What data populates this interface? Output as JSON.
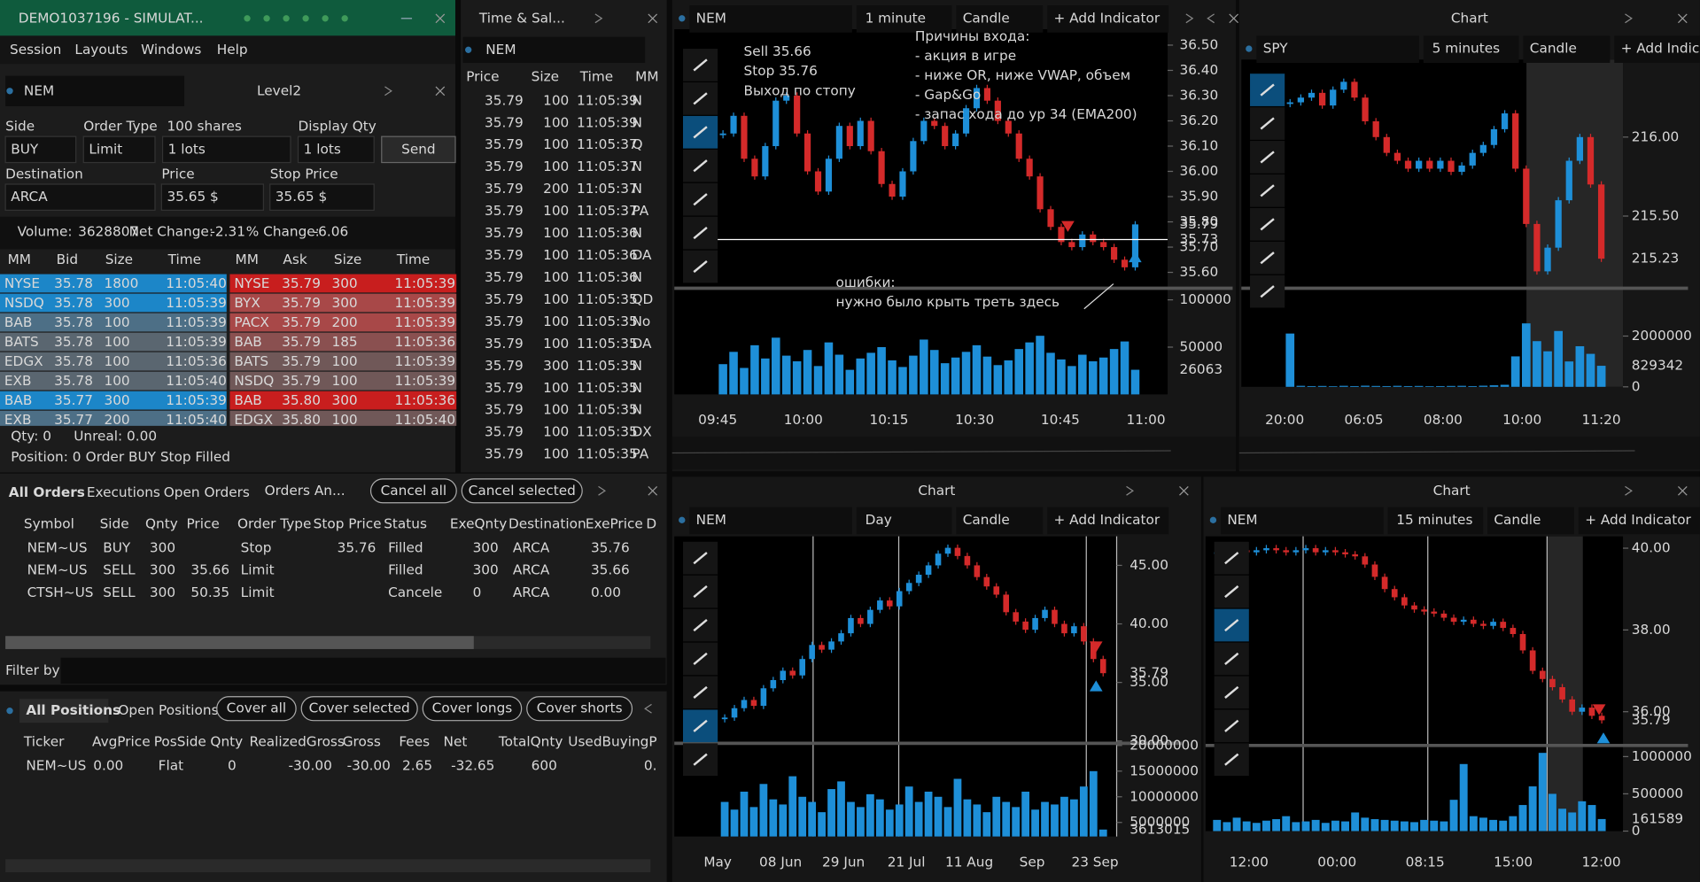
{
  "window": {
    "title": "DEMO1037196 - SIMULAT...",
    "menu": [
      "Session",
      "Layouts",
      "Windows",
      "Help"
    ]
  },
  "level2": {
    "symbol": "NEM",
    "title": "Level2",
    "labels": {
      "side": "Side",
      "order_type": "Order Type",
      "shares": "100 shares",
      "display_qty": "Display Qty",
      "destination": "Destination",
      "price": "Price",
      "stop_price": "Stop Price"
    },
    "fields": {
      "side": "BUY",
      "order_type": "Limit",
      "qty": "1 lots",
      "display_qty": "1 lots",
      "destination": "ARCA",
      "price": "35.65 $",
      "stop_price": "35.65 $"
    },
    "send": "Send",
    "stats": [
      {
        "label": "Volume:",
        "value": "3628807"
      },
      {
        "label": "Net Change:",
        "value": "-2.31",
        "color": "#e04040"
      },
      {
        "label": "% Change:",
        "value": "-6.06",
        "color": "#e04040"
      }
    ],
    "book_header": [
      "MM",
      "Bid",
      "Size",
      "Time",
      "MM",
      "Ask",
      "Size",
      "Time"
    ],
    "bids": [
      {
        "mm": "NYSE",
        "price": "35.78",
        "size": "1800",
        "time": "11:05:40",
        "color": "#1c86c8"
      },
      {
        "mm": "NSDQ",
        "price": "35.78",
        "size": "300",
        "time": "11:05:39",
        "color": "#1c86c8"
      },
      {
        "mm": "BAB",
        "price": "35.78",
        "size": "100",
        "time": "11:05:39",
        "color": "#4d6f86"
      },
      {
        "mm": "BATS",
        "price": "35.78",
        "size": "100",
        "time": "11:05:39",
        "color": "#5a6670"
      },
      {
        "mm": "EDGX",
        "price": "35.78",
        "size": "100",
        "time": "11:05:36",
        "color": "#5a6670"
      },
      {
        "mm": "EXB",
        "price": "35.78",
        "size": "100",
        "time": "11:05:40",
        "color": "#5a6670"
      },
      {
        "mm": "BAB",
        "price": "35.77",
        "size": "300",
        "time": "11:05:39",
        "color": "#1c86c8"
      },
      {
        "mm": "EXB",
        "price": "35.77",
        "size": "200",
        "time": "11:05:40",
        "color": "#4d6f86"
      }
    ],
    "asks": [
      {
        "mm": "NYSE",
        "price": "35.79",
        "size": "300",
        "time": "11:05:39",
        "color": "#c81e1e"
      },
      {
        "mm": "BYX",
        "price": "35.79",
        "size": "300",
        "time": "11:05:39",
        "color": "#a84848"
      },
      {
        "mm": "PACX",
        "price": "35.79",
        "size": "200",
        "time": "11:05:39",
        "color": "#a84848"
      },
      {
        "mm": "BAB",
        "price": "35.79",
        "size": "185",
        "time": "11:05:36",
        "color": "#8a5050"
      },
      {
        "mm": "BATS",
        "price": "35.79",
        "size": "100",
        "time": "11:05:39",
        "color": "#705858"
      },
      {
        "mm": "NSDQ",
        "price": "35.79",
        "size": "100",
        "time": "11:05:39",
        "color": "#705858"
      },
      {
        "mm": "BAB",
        "price": "35.80",
        "size": "300",
        "time": "11:05:36",
        "color": "#c81e1e"
      },
      {
        "mm": "EDGX",
        "price": "35.80",
        "size": "100",
        "time": "11:05:40",
        "color": "#705858"
      }
    ],
    "status": [
      [
        "Qty: 0",
        "Unreal: 0.00"
      ],
      [
        "Position: 0",
        "Order BUY Stop Filled"
      ]
    ]
  },
  "time_sales": {
    "title": "Time & Sal...",
    "symbol": "NEM",
    "header": [
      "Price",
      "Size",
      "Time",
      "MM"
    ],
    "rows": [
      {
        "price": "35.79",
        "size": "100",
        "time": "11:05:39",
        "mm": "N",
        "color": "#e8e8e8"
      },
      {
        "price": "35.79",
        "size": "100",
        "time": "11:05:39",
        "mm": "N",
        "color": "#e03030"
      },
      {
        "price": "35.79",
        "size": "100",
        "time": "11:05:37",
        "mm": "Q",
        "color": "#e8e8e8"
      },
      {
        "price": "35.79",
        "size": "100",
        "time": "11:05:37",
        "mm": "N",
        "color": "#2b8fd6"
      },
      {
        "price": "35.79",
        "size": "200",
        "time": "11:05:37",
        "mm": "N",
        "color": "#e8e8e8"
      },
      {
        "price": "35.79",
        "size": "100",
        "time": "11:05:37",
        "mm": "PA",
        "color": "#e03030"
      },
      {
        "price": "35.79",
        "size": "100",
        "time": "11:05:36",
        "mm": "N",
        "color": "#2b8fd6"
      },
      {
        "price": "35.79",
        "size": "100",
        "time": "11:05:36",
        "mm": "DA",
        "color": "#2b8fd6"
      },
      {
        "price": "35.79",
        "size": "100",
        "time": "11:05:36",
        "mm": "N",
        "color": "#2b8fd6"
      },
      {
        "price": "35.79",
        "size": "100",
        "time": "11:05:35",
        "mm": "QD",
        "color": "#e8e8e8"
      },
      {
        "price": "35.79",
        "size": "100",
        "time": "11:05:35",
        "mm": "No",
        "color": "#e8e8e8"
      },
      {
        "price": "35.79",
        "size": "100",
        "time": "11:05:35",
        "mm": "DA",
        "color": "#2b8fd6"
      },
      {
        "price": "35.79",
        "size": "300",
        "time": "11:05:35",
        "mm": "N",
        "color": "#e03030"
      },
      {
        "price": "35.79",
        "size": "100",
        "time": "11:05:35",
        "mm": "N",
        "color": "#e03030"
      },
      {
        "price": "35.79",
        "size": "100",
        "time": "11:05:35",
        "mm": "N",
        "color": "#e03030"
      },
      {
        "price": "35.79",
        "size": "100",
        "time": "11:05:35",
        "mm": "DX",
        "color": "#e03030"
      },
      {
        "price": "35.79",
        "size": "100",
        "time": "11:05:35",
        "mm": "PA",
        "color": "#e03030"
      }
    ]
  },
  "orders": {
    "tabs": [
      "All Orders",
      "Executions",
      "Open Orders"
    ],
    "title": "Orders An...",
    "buttons": [
      "Cancel all",
      "Cancel selected"
    ],
    "header": {
      "symbol": "Symbol",
      "side": "Side",
      "qnty": "Qnty",
      "price": "Price",
      "order_type": "Order Type",
      "stop_price": "Stop Price",
      "status": "Status",
      "exe_qnty": "ExeQnty",
      "destination": "Destination",
      "exe_price": "ExePrice",
      "d": "D"
    },
    "rows": [
      {
        "symbol": "NEM~US",
        "side": "BUY",
        "side_color": "#2b8fd6",
        "qnty": "300",
        "order_type": "Stop",
        "stop_price": "35.76",
        "status": "Filled",
        "status_color": "#8cc63f",
        "exe_qnty": "300",
        "destination": "ARCA",
        "exe_price": "35.76"
      },
      {
        "symbol": "NEM~US",
        "side": "SELL",
        "side_color": "#d03030",
        "qnty": "300",
        "price": "35.66",
        "order_type": "Limit",
        "status": "Filled",
        "status_color": "#8cc63f",
        "exe_qnty": "300",
        "destination": "ARCA",
        "exe_price": "35.66"
      },
      {
        "symbol": "CTSH~US",
        "side": "SELL",
        "side_color": "#d03030",
        "qnty": "300",
        "price": "50.35",
        "order_type": "Limit",
        "status": "Cancele",
        "status_color": "#999999",
        "exe_qnty": "0",
        "destination": "ARCA",
        "exe_price": "0.00"
      }
    ],
    "filter": "Filter by"
  },
  "positions": {
    "tabs": [
      "All Positions",
      "Open Positions"
    ],
    "buttons": [
      "Cover all",
      "Cover selected",
      "Cover longs",
      "Cover shorts"
    ],
    "header": {
      "ticker": "Ticker",
      "avg": "AvgPrice",
      "side": "PosSide",
      "qnty": "Qnty",
      "realized": "RealizedGross",
      "gross": "Gross",
      "fees": "Fees",
      "net": "Net",
      "total": "TotalQnty",
      "used": "UsedBuyingPo"
    },
    "rows": [
      {
        "ticker": "NEM~US",
        "avg": "0.00",
        "side": "Flat",
        "qnty": "0",
        "realized": "-30.00",
        "gross": "-30.00",
        "fees": "2.65",
        "net": "-32.65",
        "total": "600",
        "used": "0.",
        "colors": {
          "realized": "#e03030",
          "gross": "#e03030",
          "net": "#e03030"
        }
      }
    ]
  },
  "charts": [
    {
      "type": "candlestick",
      "symbol": "NEM",
      "interval": "1 minute",
      "style": "Candle",
      "indicator": "+ Add Indicator",
      "ylim": [
        35.55,
        36.55
      ],
      "yticks": [
        {
          "value": 36.5,
          "label": "36.50"
        },
        {
          "value": 36.4,
          "label": "36.40"
        },
        {
          "value": 36.3,
          "label": "36.30"
        },
        {
          "value": 36.2,
          "label": "36.20"
        },
        {
          "value": 36.1,
          "label": "36.10"
        },
        {
          "value": 36.0,
          "label": "36.00"
        },
        {
          "value": 35.9,
          "label": "35.90"
        },
        {
          "value": 35.8,
          "label": "35.80"
        },
        {
          "value": 35.7,
          "label": "35.70"
        },
        {
          "value": 35.6,
          "label": "35.60"
        }
      ],
      "price_markers": [
        {
          "value": 35.79,
          "color": "#2b8fd6"
        },
        {
          "value": 35.73,
          "color": "#ffffff",
          "line": true
        }
      ],
      "vol_ylim": [
        0,
        110000
      ],
      "vol_ticks": [
        50000,
        100000
      ],
      "vol_marker": {
        "value": 26063,
        "color": "#2b8fd6"
      },
      "xticks": [
        "09:45",
        "10:00",
        "10:15",
        "10:30",
        "10:45",
        "11:00"
      ],
      "closes": [
        36.15,
        36.22,
        36.05,
        35.98,
        36.1,
        36.28,
        36.3,
        36.15,
        36.0,
        35.92,
        36.05,
        36.18,
        36.1,
        36.2,
        36.08,
        35.95,
        35.9,
        36.0,
        36.12,
        36.2,
        36.18,
        36.1,
        36.15,
        36.25,
        36.33,
        36.28,
        36.2,
        36.15,
        36.05,
        35.98,
        35.85,
        35.78,
        35.72,
        35.7,
        35.75,
        35.72,
        35.7,
        35.65,
        35.62,
        35.79
      ],
      "volumes": [
        32000,
        45000,
        28000,
        52000,
        38000,
        60000,
        41000,
        35000,
        47000,
        30000,
        55000,
        42000,
        26000,
        38000,
        44000,
        50000,
        36000,
        29000,
        41000,
        58000,
        47000,
        33000,
        39000,
        45000,
        52000,
        40000,
        31000,
        36000,
        48000,
        55000,
        62000,
        44000,
        37000,
        30000,
        42000,
        35000,
        39000,
        48000,
        56000,
        26063
      ],
      "annotations": [
        "Sell 35.66",
        "Stop 35.76",
        "Выход по стопу",
        "Причины входа:",
        "- акция в игре",
        "- ниже OR, ниже VWAP, объем",
        "- Gap&Go",
        "- запас хода до ур 34 (EMA200)",
        "ошибки:",
        "нужно было крыть треть здесь"
      ],
      "up_color": "#1e8fd8",
      "down_color": "#d42a2a",
      "vol_color": "#1e8fd8"
    },
    {
      "type": "candlestick",
      "title": "Chart",
      "symbol": "SPY",
      "interval": "5 minutes",
      "style": "Candle",
      "indicator": "+ Add Indica",
      "ylim": [
        215.05,
        216.47
      ],
      "yticks": [
        {
          "value": 216,
          "label": "216.00"
        },
        {
          "value": 215.5,
          "label": "215.50"
        }
      ],
      "price_markers": [
        {
          "value": 215.23,
          "color": "#2b8fd6"
        }
      ],
      "vol_ylim": [
        0,
        3800000
      ],
      "vol_ticks": [
        0,
        2000000
      ],
      "vol_marker": {
        "value": 829342,
        "color": "#2b8fd6"
      },
      "xticks": [
        "20:00",
        "06:05",
        "08:00",
        "10:00",
        "11:20"
      ],
      "closes": [
        216.22,
        216.25,
        216.28,
        216.2,
        216.3,
        216.35,
        216.25,
        216.1,
        216.0,
        215.9,
        215.85,
        215.8,
        215.85,
        215.8,
        215.85,
        215.78,
        215.82,
        215.9,
        215.95,
        216.05,
        216.15,
        215.8,
        215.45,
        215.15,
        215.3,
        215.6,
        215.85,
        216.0,
        215.7,
        215.23
      ],
      "volumes": [
        2100000,
        40000,
        30000,
        35000,
        25000,
        40000,
        30000,
        45000,
        35000,
        30000,
        40000,
        30000,
        35000,
        25000,
        30000,
        35000,
        40000,
        30000,
        45000,
        60000,
        80000,
        1200000,
        2500000,
        1800000,
        1400000,
        2200000,
        1000000,
        1600000,
        1300000,
        829342
      ],
      "up_color": "#1e8fd8",
      "down_color": "#d42a2a",
      "vol_color": "#1e8fd8"
    },
    {
      "type": "candlestick",
      "title": "Chart",
      "symbol": "NEM",
      "interval": "Day",
      "style": "Candle",
      "indicator": "+ Add Indicator",
      "ylim": [
        29.8,
        47.2
      ],
      "yticks": [
        {
          "value": 45,
          "label": "45.00"
        },
        {
          "value": 40,
          "label": "40.00"
        },
        {
          "value": 35,
          "label": "35.00"
        },
        {
          "value": 30,
          "label": "30.00"
        }
      ],
      "price_markers": [
        {
          "value": 35.79,
          "color": "#d42a2a"
        }
      ],
      "vol_ylim": [
        2260000,
        20000000
      ],
      "vol_ticks": [
        5000000,
        10000000,
        15000000,
        20000000
      ],
      "vol_marker": {
        "value": 3613015,
        "color": "#2b8fd6"
      },
      "xticks": [
        "May",
        "08 Jun",
        "29 Jun",
        "21 Jul",
        "11 Aug",
        "Sep",
        "23 Sep"
      ],
      "closes": [
        32.0,
        32.8,
        33.5,
        33.0,
        34.5,
        35.2,
        36.0,
        35.6,
        37.0,
        38.2,
        37.8,
        38.5,
        39.2,
        40.5,
        40.0,
        41.2,
        42.0,
        41.5,
        42.8,
        43.5,
        44.2,
        45.0,
        46.0,
        46.5,
        45.8,
        45.0,
        44.0,
        43.2,
        42.5,
        41.0,
        40.2,
        39.5,
        40.5,
        41.2,
        40.0,
        39.2,
        39.8,
        38.5,
        37.0,
        35.79
      ],
      "volumes": [
        9000000,
        7500000,
        11000000,
        8000000,
        12500000,
        9500000,
        8500000,
        14000000,
        10000000,
        9000000,
        7000000,
        11500000,
        13000000,
        9000000,
        8000000,
        10500000,
        9500000,
        7500000,
        8500000,
        12000000,
        9000000,
        11000000,
        10000000,
        8000000,
        13500000,
        9500000,
        8500000,
        7000000,
        10000000,
        9000000,
        8000000,
        11000000,
        7500000,
        9000000,
        8500000,
        10000000,
        9500000,
        12000000,
        15000000,
        3613015
      ],
      "up_color": "#1e8fd8",
      "down_color": "#d42a2a",
      "vol_color": "#1e8fd8"
    },
    {
      "type": "candlestick",
      "title": "Chart",
      "symbol": "NEM",
      "interval": "15 minutes",
      "style": "Candle",
      "indicator": "+ Add Indicator",
      "ylim": [
        35.28,
        40.21
      ],
      "yticks": [
        {
          "value": 40,
          "label": "40.00"
        },
        {
          "value": 38,
          "label": "38.00"
        },
        {
          "value": 36,
          "label": "36.00"
        }
      ],
      "price_markers": [
        {
          "value": 35.79,
          "color": "#2b8fd6"
        }
      ],
      "vol_ylim": [
        0,
        1120000
      ],
      "vol_ticks": [
        0,
        500000,
        1000000
      ],
      "vol_marker": {
        "value": 161589,
        "color": "#2b8fd6"
      },
      "xticks": [
        "12:00",
        "00:00",
        "08:15",
        "15:00",
        "12:00"
      ],
      "closes": [
        39.9,
        39.85,
        39.95,
        39.9,
        39.95,
        40.0,
        39.95,
        39.9,
        39.95,
        40.0,
        39.9,
        39.95,
        39.9,
        39.85,
        39.8,
        39.6,
        39.3,
        39.0,
        38.8,
        38.6,
        38.5,
        38.45,
        38.4,
        38.3,
        38.2,
        38.25,
        38.15,
        38.1,
        38.2,
        38.05,
        37.9,
        37.5,
        37.0,
        36.8,
        36.6,
        36.3,
        36.0,
        36.1,
        35.9,
        35.79
      ],
      "volumes": [
        150000,
        120000,
        180000,
        130000,
        110000,
        140000,
        160000,
        200000,
        120000,
        130000,
        150000,
        110000,
        140000,
        130000,
        250000,
        180000,
        160000,
        150000,
        140000,
        130000,
        120000,
        150000,
        140000,
        130000,
        420000,
        900000,
        200000,
        180000,
        150000,
        140000,
        200000,
        350000,
        600000,
        1050000,
        500000,
        300000,
        250000,
        400000,
        350000,
        161589
      ],
      "up_color": "#1e8fd8",
      "down_color": "#d42a2a",
      "vol_color": "#1e8fd8"
    }
  ]
}
